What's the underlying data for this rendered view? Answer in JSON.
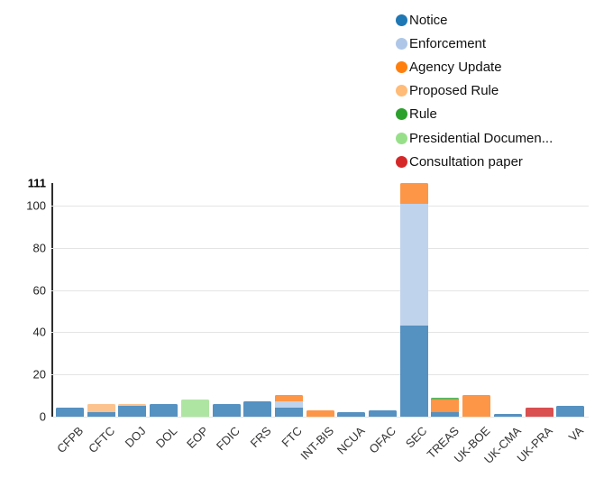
{
  "chart_data": {
    "type": "bar",
    "stacked": true,
    "grid": true,
    "legend_position": "top-right",
    "categories": [
      "CFPB",
      "CFTC",
      "DOJ",
      "DOL",
      "EOP",
      "FDIC",
      "FRS",
      "FTC",
      "INT-BIS",
      "NCUA",
      "OFAC",
      "SEC",
      "TREAS",
      "UK-BOE",
      "UK-CMA",
      "UK-PRA",
      "VA"
    ],
    "series": [
      {
        "name": "Notice",
        "legend_color": "#1f77b4",
        "bar_color": "#5591c1",
        "values": [
          4,
          2,
          5,
          6,
          0,
          6,
          7,
          4,
          0,
          2,
          3,
          43,
          2,
          0,
          1,
          0,
          5
        ]
      },
      {
        "name": "Enforcement",
        "legend_color": "#aec7e8",
        "bar_color": "#bfd3ec",
        "values": [
          0,
          0,
          0,
          0,
          0,
          0,
          0,
          3,
          0,
          0,
          0,
          58,
          0,
          0,
          0,
          0,
          0
        ]
      },
      {
        "name": "Agency Update",
        "legend_color": "#ff7f0e",
        "bar_color": "#fd9647",
        "values": [
          0,
          0,
          0,
          0,
          0,
          0,
          0,
          3,
          3,
          0,
          0,
          10,
          6,
          10,
          0,
          0,
          0
        ]
      },
      {
        "name": "Proposed Rule",
        "legend_color": "#ffbb78",
        "bar_color": "#fdc38e",
        "values": [
          0,
          4,
          1,
          0,
          0,
          0,
          0,
          0,
          0,
          0,
          0,
          0,
          0,
          0,
          0,
          0,
          0
        ]
      },
      {
        "name": "Rule",
        "legend_color": "#2ca02c",
        "bar_color": "#5fb75f",
        "values": [
          0,
          0,
          0,
          0,
          0,
          0,
          0,
          0,
          0,
          0,
          0,
          0,
          1,
          0,
          0,
          0,
          0
        ]
      },
      {
        "name": "Presidential Documen...",
        "legend_color": "#98df8a",
        "bar_color": "#aee5a2",
        "values": [
          0,
          0,
          0,
          0,
          8,
          0,
          0,
          0,
          0,
          0,
          0,
          0,
          0,
          0,
          0,
          0,
          0
        ]
      },
      {
        "name": "Consultation paper",
        "legend_color": "#d62728",
        "bar_color": "#da4f50",
        "values": [
          0,
          0,
          0,
          0,
          0,
          0,
          0,
          0,
          0,
          0,
          0,
          0,
          0,
          0,
          0,
          4,
          0
        ]
      }
    ],
    "y_ticks": [
      0,
      20,
      40,
      60,
      80,
      100
    ],
    "y_max_label": "111",
    "ylim": [
      0,
      111
    ],
    "title": "",
    "xlabel": "",
    "ylabel": ""
  }
}
